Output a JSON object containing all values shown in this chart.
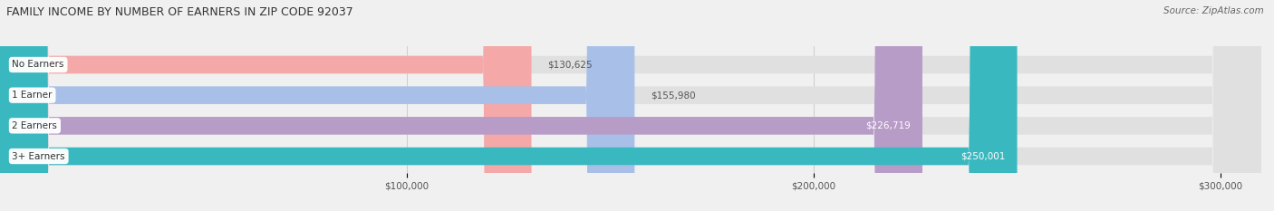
{
  "title": "FAMILY INCOME BY NUMBER OF EARNERS IN ZIP CODE 92037",
  "source": "Source: ZipAtlas.com",
  "categories": [
    "No Earners",
    "1 Earner",
    "2 Earners",
    "3+ Earners"
  ],
  "values": [
    130625,
    155980,
    226719,
    250001
  ],
  "labels": [
    "$130,625",
    "$155,980",
    "$226,719",
    "$250,001"
  ],
  "bar_colors": [
    "#f4a8a8",
    "#a8c0e8",
    "#b89cc8",
    "#3ab8c0"
  ],
  "label_colors": [
    "#555555",
    "#555555",
    "#ffffff",
    "#ffffff"
  ],
  "xmin": 0,
  "xmax": 310000,
  "xticks": [
    100000,
    200000,
    300000
  ],
  "xtick_labels": [
    "$100,000",
    "$200,000",
    "$300,000"
  ],
  "background_color": "#f0f0f0",
  "bar_bg_color": "#e0e0e0",
  "title_fontsize": 9,
  "source_fontsize": 7.5,
  "label_fontsize": 7.5,
  "tick_fontsize": 7.5,
  "bar_height": 0.58
}
